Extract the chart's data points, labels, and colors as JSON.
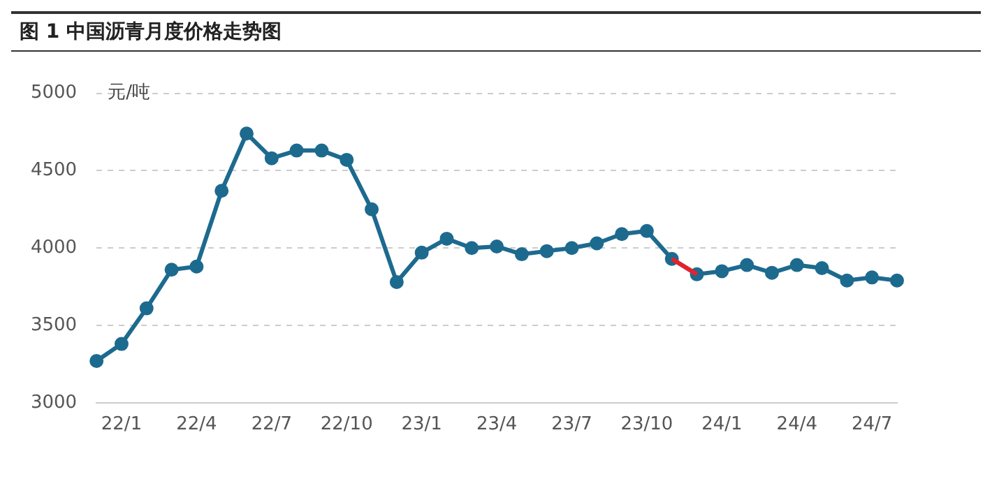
{
  "chart_data": {
    "type": "line",
    "title": "图 1 中国沥青月度价格走势图",
    "ylabel": "元/吨",
    "categories": [
      null,
      "22/1",
      null,
      null,
      "22/4",
      null,
      null,
      "22/7",
      null,
      null,
      "22/10",
      null,
      null,
      "23/1",
      null,
      null,
      "23/4",
      null,
      null,
      "23/7",
      null,
      null,
      "23/10",
      null,
      null,
      "24/1",
      null,
      null,
      "24/4",
      null,
      null,
      "24/7",
      null
    ],
    "series": [
      {
        "color": "#1d6a8f",
        "marker": "circle",
        "values": [
          3270,
          3380,
          3610,
          3860,
          3880,
          4370,
          4740,
          4580,
          4630,
          4630,
          4570,
          4250,
          3780,
          3970,
          4060,
          4000,
          4010,
          3960,
          3980,
          4000,
          4030,
          4090,
          4110,
          3930,
          3830,
          3850,
          3890,
          3840,
          3890,
          3870,
          3790,
          3810,
          3790
        ]
      },
      {
        "color": "#e8202a",
        "marker": "none",
        "values": [
          null,
          null,
          null,
          null,
          null,
          null,
          null,
          null,
          null,
          null,
          null,
          null,
          null,
          null,
          null,
          null,
          null,
          null,
          null,
          null,
          null,
          null,
          null,
          3930,
          3830,
          null,
          null,
          null,
          null,
          null,
          null,
          null,
          null
        ]
      }
    ],
    "ylim": [
      3000,
      5000
    ],
    "yticks": [
      3000,
      3500,
      4000,
      4500,
      5000
    ],
    "grid": "y",
    "line_style": "solid"
  }
}
